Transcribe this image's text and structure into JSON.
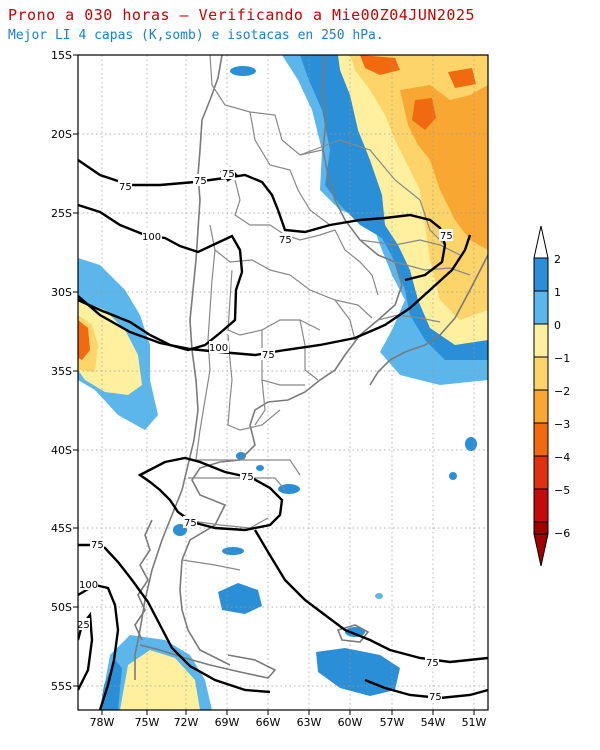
{
  "title": "Prono a 030 horas — Verificando a Mie00Z04JUN2025",
  "subtitle": "Mejor LI 4 capas (K,somb) e isotacas en 250 hPa.",
  "lat_labels": [
    "15S",
    "20S",
    "25S",
    "30S",
    "35S",
    "40S",
    "45S",
    "50S",
    "55S"
  ],
  "lon_labels": [
    "78W",
    "75W",
    "72W",
    "69W",
    "66W",
    "63W",
    "60W",
    "57W",
    "54W",
    "51W"
  ],
  "colorbar": {
    "labels": [
      "2",
      "1",
      "0",
      "−1",
      "−2",
      "−3",
      "−4",
      "−5",
      "−6"
    ],
    "colors": [
      "#2a8fd6",
      "#5bb6ec",
      "#fff0a0",
      "#fcd46a",
      "#f9a733",
      "#f26a10",
      "#e03010",
      "#c40a0a",
      "#a00000"
    ]
  },
  "isotach_labels": [
    "75",
    "75",
    "75",
    "100",
    "75",
    "75",
    "100",
    "75",
    "75",
    "75",
    "100",
    "25",
    "75",
    "75"
  ],
  "colors": {
    "deep_blue": "#2a8fd6",
    "light_blue": "#5bb6ec",
    "pale_yellow": "#fff0a0",
    "yellow": "#fcd46a",
    "orange": "#f9a733",
    "red_orange": "#f26a10",
    "contour": "#000000",
    "border": "#888888",
    "title_red": "#cc0000",
    "subtitle_blue": "#1a7fd0"
  }
}
